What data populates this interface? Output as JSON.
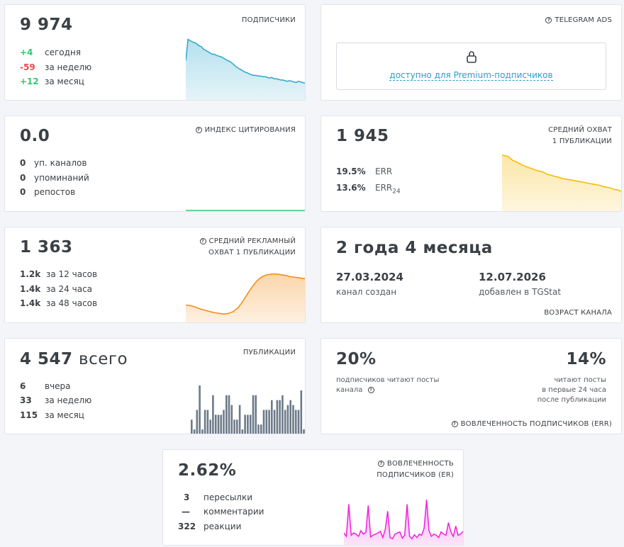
{
  "subscribers": {
    "value": "9 974",
    "title": "ПОДПИСЧИКИ",
    "rows": [
      {
        "num": "+4",
        "label": "сегодня"
      },
      {
        "num": "-59",
        "label": "за неделю"
      },
      {
        "num": "+12",
        "label": "за месяц"
      }
    ],
    "trend": [
      62,
      95,
      93,
      91,
      90,
      88,
      85,
      84,
      80,
      78,
      76,
      74,
      72,
      72,
      70,
      69,
      68,
      66,
      64,
      62,
      61,
      58,
      55,
      52,
      50,
      48,
      46,
      44,
      43,
      41,
      40,
      39,
      39,
      38,
      38,
      37,
      37,
      36,
      35,
      36,
      34,
      34,
      33,
      32,
      32,
      31,
      30,
      31,
      30,
      29,
      28,
      30,
      29,
      28,
      27
    ],
    "color": "#2aa7cc"
  },
  "ads": {
    "title": "TELEGRAM ADS",
    "link": "доступно для Premium-подписчиков"
  },
  "citation": {
    "value": "0.0",
    "title": "ИНДЕКС ЦИТИРОВАНИЯ",
    "rows": [
      {
        "num": "0",
        "label": "уп. каналов"
      },
      {
        "num": "0",
        "label": "упоминаний"
      },
      {
        "num": "0",
        "label": "репостов"
      }
    ],
    "color": "#2ecc71"
  },
  "reach": {
    "value": "1 945",
    "title": [
      "СРЕДНИЙ ОХВАТ",
      "1 ПУБЛИКАЦИИ"
    ],
    "err": {
      "num": "19.5%",
      "label": "ERR"
    },
    "err24": {
      "num": "13.6%",
      "label": "ERR",
      "sub": "24"
    },
    "trend": [
      88,
      87,
      85,
      80,
      78,
      75,
      72,
      70,
      68,
      66,
      64,
      63,
      61,
      58,
      57,
      55,
      54,
      52,
      51,
      50,
      49,
      48,
      47,
      46,
      45,
      44,
      43,
      42,
      41,
      39,
      38,
      37,
      35,
      34,
      32
    ],
    "color": "#f5b800"
  },
  "adreach": {
    "value": "1 363",
    "title": [
      "СРЕДНИЙ РЕКЛАМНЫЙ",
      "ОХВАТ 1 ПУБЛИКАЦИИ"
    ],
    "rows": [
      {
        "num": "1.2k",
        "label": "за 12 часов"
      },
      {
        "num": "1.4k",
        "label": "за 24 часа"
      },
      {
        "num": "1.4k",
        "label": "за 48 часов"
      }
    ],
    "trend": [
      28,
      27,
      25,
      22,
      20,
      18,
      16,
      15,
      14,
      15,
      18,
      24,
      34,
      46,
      57,
      66,
      72,
      75,
      76,
      76,
      75,
      74,
      72,
      71,
      70,
      69
    ],
    "color": "#f5890e"
  },
  "age": {
    "value": "2 года 4 месяца",
    "created": "27.03.2024",
    "created_label": "канал создан",
    "added": "12.07.2026",
    "added_label": "добавлен в TGStat",
    "title": "ВОЗРАСТ КАНАЛА"
  },
  "posts": {
    "value": "4 547",
    "suffix": "всего",
    "title": "ПУБЛИКАЦИИ",
    "rows": [
      {
        "num": "6",
        "label": "вчера"
      },
      {
        "num": "33",
        "label": "за неделю"
      },
      {
        "num": "115",
        "label": "за месяц"
      }
    ],
    "bars": [
      3,
      1,
      5,
      10,
      1,
      5,
      5,
      3,
      8,
      4,
      4,
      4,
      5,
      8,
      8,
      6,
      3,
      3,
      6,
      1,
      4,
      4,
      4,
      8,
      8,
      2,
      2,
      5,
      5,
      5,
      7,
      5,
      7,
      7,
      8,
      5,
      6,
      7,
      6,
      5,
      5,
      9,
      1
    ],
    "bar_color": "#6c7a89"
  },
  "engagement_err": {
    "left_value": "20%",
    "left_note": [
      "подписчиков читают посты",
      "канала"
    ],
    "right_value": "14%",
    "right_note": [
      "читают посты",
      "в первые 24 часа",
      "после публикации"
    ],
    "title": "ВОВЛЕЧЕННОСТЬ ПОДПИСЧИКОВ (ERR)"
  },
  "engagement_er": {
    "value": "2.62%",
    "title": [
      "ВОВЛЕЧЕННОСТЬ",
      "ПОДПИСЧИКОВ (ER)"
    ],
    "rows": [
      {
        "num": "3",
        "label": "пересылки"
      },
      {
        "num": "—",
        "label": "комментарии"
      },
      {
        "num": "322",
        "label": "реакции"
      }
    ],
    "trend": [
      22,
      16,
      72,
      18,
      22,
      20,
      16,
      26,
      20,
      23,
      70,
      15,
      18,
      20,
      22,
      25,
      14,
      28,
      60,
      14,
      12,
      20,
      22,
      24,
      13,
      18,
      72,
      16,
      12,
      19,
      14,
      20,
      18,
      30,
      80,
      26,
      16,
      20,
      18,
      14,
      24,
      20,
      18,
      40,
      24,
      16,
      34,
      18,
      20,
      25
    ],
    "color": "#ee22dd"
  }
}
